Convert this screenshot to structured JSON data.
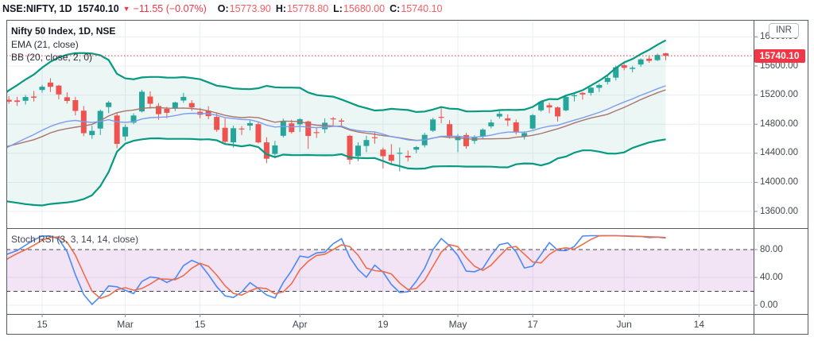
{
  "header": {
    "symbol": "NSE:NIFTY, 1D",
    "last": "15740.10",
    "direction_icon": "▼",
    "change": "−11.55 (−0.07%)",
    "ohlc": [
      {
        "label": "O:",
        "value": "15773.90"
      },
      {
        "label": "H:",
        "value": "15778.80"
      },
      {
        "label": "L:",
        "value": "15680.00"
      },
      {
        "label": "C:",
        "value": "15740.10"
      }
    ]
  },
  "main_pane": {
    "legend_title": "Nifty 50 Index, 1D, NSE",
    "legend_ema": "EMA (21, close)",
    "legend_bb": "BB (20, close, 2, 0)"
  },
  "stoch_pane": {
    "legend": "Stoch RSI (3, 3, 14, 14, close)"
  },
  "price_scale": {
    "currency_badge": "INR",
    "last_price_label": "15740.10"
  },
  "colors": {
    "up": "#26A69A",
    "down": "#EF5350",
    "bb_band": "#089981",
    "bb_fill": "rgba(8,153,129,0.08)",
    "bb_basis": "#A9746E",
    "ema": "#7E9BED",
    "stoch_k": "#4A8AF4",
    "stoch_d": "#EC6E4C",
    "stoch_band_fill": "rgba(156,39,176,0.13)",
    "dashed_level": "#40444d",
    "price_line": "#F23645",
    "grid": "#E9EDF3",
    "frame": "#555A64",
    "tick_text": "#42464E"
  },
  "chart_data": {
    "type": "candlestick",
    "title": "Nifty 50 Index, 1D, NSE",
    "timeframe": "1D",
    "exchange": "NSE",
    "price_axis": {
      "ticks": [
        {
          "label": "16000.00",
          "value": 16000
        },
        {
          "label": "15600.00",
          "value": 15600
        },
        {
          "label": "15200.00",
          "value": 15200
        },
        {
          "label": "14800.00",
          "value": 14800
        },
        {
          "label": "14400.00",
          "value": 14400
        },
        {
          "label": "14000.00",
          "value": 14000
        },
        {
          "label": "13600.00",
          "value": 13600
        }
      ],
      "visible_range": [
        13370,
        16235
      ],
      "last_price_value": 15740.1
    },
    "stoch_axis": {
      "ticks": [
        {
          "label": "80.00",
          "value": 80
        },
        {
          "label": "40.00",
          "value": 40
        },
        {
          "label": "0.00",
          "value": 0
        }
      ],
      "grid_values": [
        40,
        0
      ],
      "band": {
        "upper": 80,
        "lower": 20
      },
      "visible_range": [
        -12,
        111
      ]
    },
    "time_axis": {
      "labels": [
        {
          "label": "15",
          "index": 5
        },
        {
          "label": "Mar",
          "index": 15
        },
        {
          "label": "15",
          "index": 24
        },
        {
          "label": "Apr",
          "index": 36
        },
        {
          "label": "19",
          "index": 46
        },
        {
          "label": "May",
          "index": 55
        },
        {
          "label": "17",
          "index": 64
        },
        {
          "label": "Jun",
          "index": 75
        },
        {
          "label": "14",
          "index": 84
        }
      ]
    },
    "indicators": [
      {
        "label": "EMA (21, close)",
        "type": "ema",
        "length": 21
      },
      {
        "label": "BB (20, close, 2, 0)",
        "type": "bollinger",
        "length": 20,
        "mult": 2
      },
      {
        "label": "Stoch RSI (3, 3, 14, 14, close)",
        "type": "stoch_rsi",
        "smooth_k": 3,
        "smooth_d": 3,
        "rsi_length": 14,
        "stoch_length": 14
      }
    ],
    "warmup_closes": [
      13328.4,
      13466.3,
      13601.1,
      13749.3,
      13873.2,
      13932.6,
      13982.0,
      13981.8,
      14018.5,
      14132.9,
      14199.5,
      14146.3,
      14137.4,
      14347.3,
      14484.8,
      14563.5,
      14564.9,
      14595.6,
      14433.7,
      14281.3,
      14521.2,
      14644.7,
      14590.4,
      14371.9,
      14238.9,
      13967.5,
      13817.6,
      13634.6,
      14281.2,
      14647.9,
      14790.0,
      14895.7,
      14924.3
    ],
    "candles_ohlc": [
      [
        15020.0,
        15160.0,
        14985.0,
        15115.8
      ],
      [
        15135.0,
        15185.0,
        15081.0,
        15109.3
      ],
      [
        15126.0,
        15176.0,
        15050.0,
        15106.5
      ],
      [
        15121.0,
        15200.0,
        15070.0,
        15173.3
      ],
      [
        15180.0,
        15257.0,
        15112.0,
        15163.3
      ],
      [
        15270.0,
        15340.0,
        15233.0,
        15314.7
      ],
      [
        15372.0,
        15431.8,
        15242.0,
        15313.5
      ],
      [
        15330.0,
        15340.0,
        15141.0,
        15208.9
      ],
      [
        15170.0,
        15237.0,
        15083.0,
        15119.0
      ],
      [
        15130.0,
        15176.0,
        14921.0,
        14981.8
      ],
      [
        14985.0,
        15050.0,
        14635.0,
        14675.7
      ],
      [
        14650.0,
        14778.0,
        14599.0,
        14707.8
      ],
      [
        14740.0,
        15000.0,
        14651.0,
        14982.0
      ],
      [
        15035.0,
        15120.0,
        14952.0,
        15097.4
      ],
      [
        14919.0,
        14954.0,
        14467.0,
        14529.2
      ],
      [
        14630.0,
        14797.0,
        14574.0,
        14761.6
      ],
      [
        14820.0,
        14950.0,
        14800.0,
        14919.1
      ],
      [
        14975.0,
        15273.0,
        14960.0,
        15245.6
      ],
      [
        15180.0,
        15253.0,
        15013.0,
        15080.8
      ],
      [
        15050.0,
        15090.0,
        14860.0,
        14938.1
      ],
      [
        15010.0,
        15040.0,
        14881.0,
        14956.2
      ],
      [
        15015.0,
        15110.0,
        14981.0,
        15098.4
      ],
      [
        15125.0,
        15230.0,
        15095.0,
        15174.8
      ],
      [
        15090.0,
        15130.0,
        14983.0,
        15031.0
      ],
      [
        14970.0,
        15025.0,
        14880.0,
        14929.5
      ],
      [
        14985.0,
        15047.0,
        14868.0,
        14910.5
      ],
      [
        14900.0,
        14950.0,
        14695.0,
        14721.3
      ],
      [
        14750.0,
        14880.0,
        14525.0,
        14557.9
      ],
      [
        14550.0,
        14780.0,
        14477.0,
        14744.0
      ],
      [
        14740.0,
        14775.0,
        14650.0,
        14736.4
      ],
      [
        14780.0,
        14849.0,
        14715.0,
        14814.8
      ],
      [
        14800.0,
        14830.0,
        14535.0,
        14549.4
      ],
      [
        14550.0,
        14620.0,
        14264.0,
        14324.9
      ],
      [
        14390.0,
        14572.0,
        14334.0,
        14507.3
      ],
      [
        14640.0,
        14876.0,
        14617.0,
        14845.1
      ],
      [
        14811.0,
        14860.0,
        14670.0,
        14690.7
      ],
      [
        14798.0,
        14883.0,
        14692.0,
        14867.4
      ],
      [
        14837.0,
        14849.0,
        14459.0,
        14637.8
      ],
      [
        14690.0,
        14750.0,
        14610.0,
        14683.5
      ],
      [
        14730.0,
        14880.0,
        14678.0,
        14819.1
      ],
      [
        14879.0,
        14900.0,
        14785.0,
        14873.8
      ],
      [
        14850.0,
        14880.0,
        14780.0,
        14834.9
      ],
      [
        14640.0,
        14652.0,
        14248.0,
        14310.8
      ],
      [
        14360.0,
        14550.0,
        14290.0,
        14504.8
      ],
      [
        14500.0,
        14640.0,
        14415.0,
        14581.5
      ],
      [
        14620.0,
        14697.0,
        14530.0,
        14617.9
      ],
      [
        14450.0,
        14478.0,
        14191.0,
        14359.5
      ],
      [
        14380.0,
        14526.0,
        14255.0,
        14296.4
      ],
      [
        14400.0,
        14480.0,
        14151.0,
        14406.2
      ],
      [
        14365.0,
        14440.0,
        14287.0,
        14341.4
      ],
      [
        14449.0,
        14500.0,
        14401.0,
        14485.0
      ],
      [
        14510.0,
        14680.0,
        14480.0,
        14653.1
      ],
      [
        14710.0,
        14890.0,
        14694.0,
        14864.6
      ],
      [
        14900.0,
        15044.0,
        14814.0,
        14894.9
      ],
      [
        14800.0,
        14855.0,
        14601.0,
        14631.1
      ],
      [
        14580.0,
        14666.0,
        14416.0,
        14634.2
      ],
      [
        14650.0,
        14680.0,
        14461.0,
        14496.5
      ],
      [
        14570.0,
        14650.0,
        14528.0,
        14617.9
      ],
      [
        14630.0,
        14743.0,
        14590.0,
        14724.8
      ],
      [
        14770.0,
        14863.0,
        14743.0,
        14823.2
      ],
      [
        14905.0,
        14985.0,
        14875.0,
        14942.4
      ],
      [
        14880.0,
        14935.0,
        14771.0,
        14850.8
      ],
      [
        14825.0,
        14865.0,
        14660.0,
        14696.5
      ],
      [
        14630.0,
        14702.0,
        14589.0,
        14677.8
      ],
      [
        14740.0,
        14940.0,
        14726.0,
        14923.2
      ],
      [
        14990.0,
        15118.0,
        14970.0,
        15108.1
      ],
      [
        15060.0,
        15093.0,
        14950.0,
        15030.2
      ],
      [
        15030.0,
        15043.0,
        14836.0,
        14906.1
      ],
      [
        14990.0,
        15190.0,
        14977.0,
        15175.3
      ],
      [
        15190.0,
        15239.0,
        15112.0,
        15197.7
      ],
      [
        15230.0,
        15240.0,
        15137.0,
        15208.5
      ],
      [
        15230.0,
        15310.0,
        15192.0,
        15301.5
      ],
      [
        15300.0,
        15357.0,
        15243.0,
        15337.9
      ],
      [
        15380.0,
        15469.0,
        15344.0,
        15435.7
      ],
      [
        15440.0,
        15606.0,
        15400.0,
        15582.8
      ],
      [
        15610.0,
        15635.0,
        15541.0,
        15574.9
      ],
      [
        15560.0,
        15602.0,
        15513.0,
        15576.2
      ],
      [
        15620.0,
        15705.0,
        15587.0,
        15690.4
      ],
      [
        15700.0,
        15733.0,
        15643.0,
        15670.3
      ],
      [
        15680.0,
        15770.0,
        15667.0,
        15751.7
      ],
      [
        15773.9,
        15778.8,
        15680.0,
        15740.1
      ]
    ]
  }
}
